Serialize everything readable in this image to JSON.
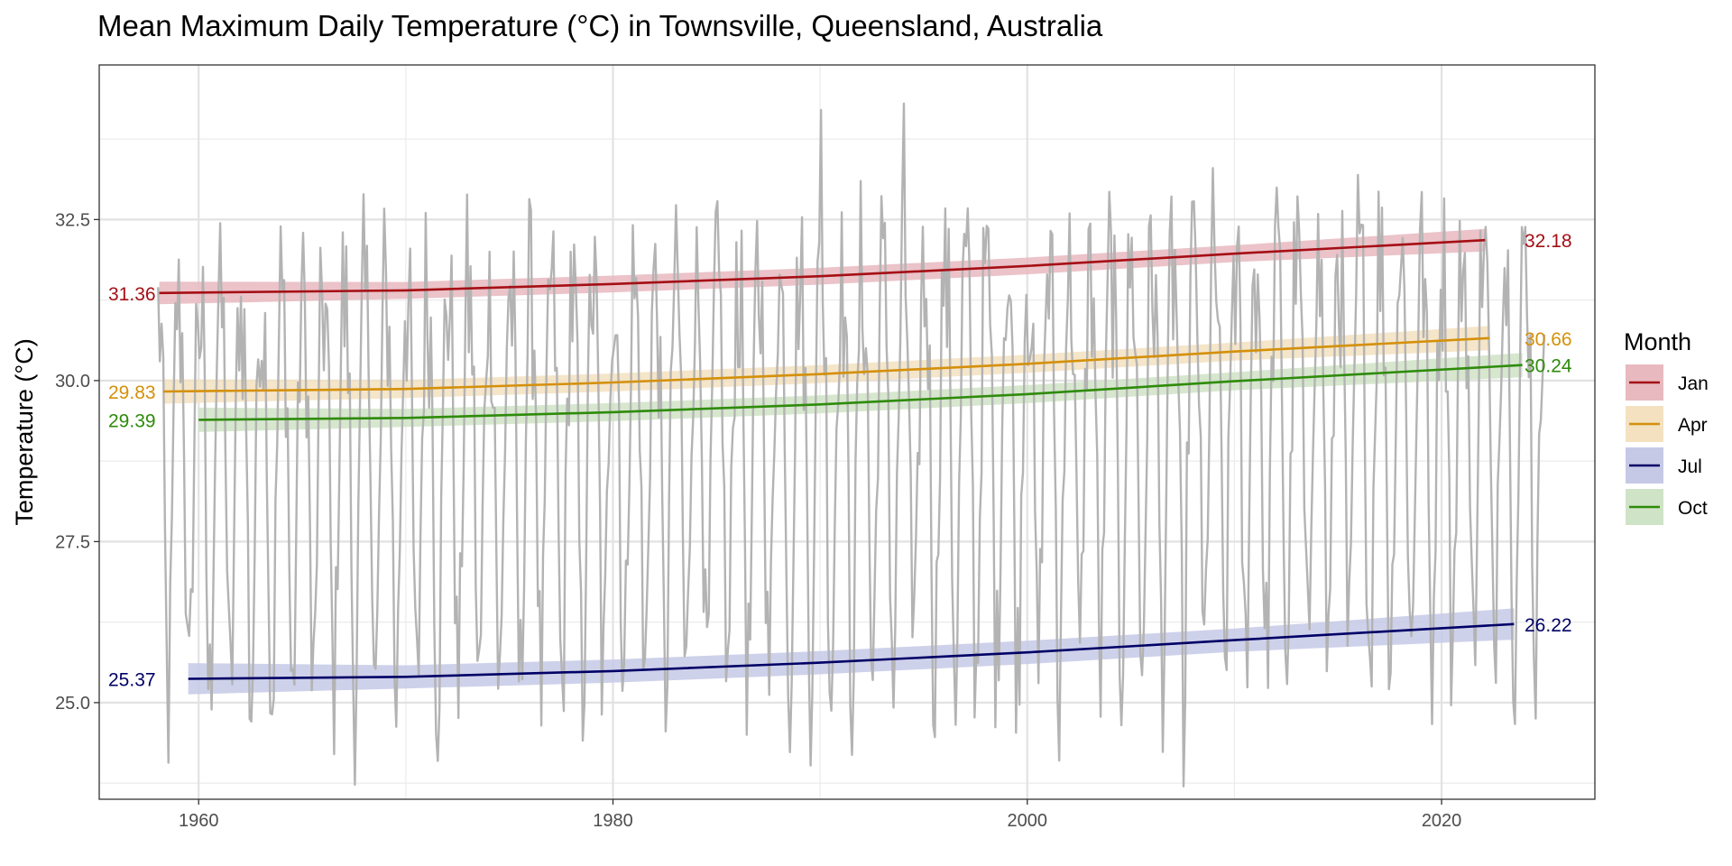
{
  "title": "Mean Maximum Daily Temperature (°C) in Townsville, Queensland, Australia",
  "chart_data": {
    "type": "line",
    "title": "Mean Maximum Daily Temperature (°C) in Townsville, Queensland, Australia",
    "xlabel": "",
    "ylabel": "Temperature (°C)",
    "xlim": [
      1955.2,
      2027.4
    ],
    "ylim": [
      23.5,
      34.9
    ],
    "x_ticks": [
      1960,
      1980,
      2000,
      2020
    ],
    "x_tick_labels": [
      "1960",
      "1980",
      "2000",
      "2020"
    ],
    "y_ticks": [
      25.0,
      27.5,
      30.0,
      32.5
    ],
    "y_tick_labels": [
      "25.0",
      "27.5",
      "30.0",
      "32.5"
    ],
    "grid": true,
    "legend": {
      "title": "Month",
      "placement": "right"
    },
    "monthly_series": {
      "name": "",
      "color": "#b3b3b3",
      "months_of_year": [
        1,
        2,
        3,
        4,
        5,
        6,
        7,
        8,
        9,
        10,
        11,
        12
      ],
      "year_start": 1958,
      "year_end": 2024,
      "annual_pattern": [
        31.4,
        31.3,
        30.9,
        29.8,
        27.6,
        25.8,
        25.4,
        26.2,
        27.9,
        29.4,
        30.9,
        31.7
      ],
      "annual_pattern_trend_per_decade": 0.13,
      "notable_extremes": [
        {
          "date": "1990-01",
          "value": 34.2
        },
        {
          "date": "1994-01",
          "value": 34.3
        },
        {
          "date": "2007-07",
          "value": 23.7
        },
        {
          "date": "1966-07",
          "value": 24.2
        },
        {
          "date": "2001-07",
          "value": 24.1
        }
      ]
    },
    "series": [
      {
        "name": "Jan",
        "color": "#a50f15",
        "band_color": "#e8b9bf",
        "x": [
          1958.1,
          1970,
          1980,
          1990,
          2000,
          2010,
          2022.1
        ],
        "values": [
          31.36,
          31.4,
          31.5,
          31.62,
          31.78,
          31.97,
          32.18
        ],
        "band_halfwidth": 0.13,
        "start_label": "31.36",
        "end_label": "32.18"
      },
      {
        "name": "Apr",
        "color": "#d4900a",
        "band_color": "#f3e1c0",
        "x": [
          1958.3,
          1970,
          1980,
          1990,
          2000,
          2010,
          2022.3
        ],
        "values": [
          29.83,
          29.87,
          29.97,
          30.1,
          30.26,
          30.45,
          30.66
        ],
        "band_halfwidth": 0.14,
        "start_label": "29.83",
        "end_label": "30.66"
      },
      {
        "name": "Jul",
        "color": "#000066",
        "band_color": "#c6c9e6",
        "x": [
          1959.5,
          1970,
          1980,
          1990,
          2000,
          2010,
          2023.5
        ],
        "values": [
          25.37,
          25.4,
          25.49,
          25.62,
          25.78,
          25.97,
          26.22
        ],
        "band_halfwidth": 0.18,
        "start_label": "25.37",
        "end_label": "26.22"
      },
      {
        "name": "Oct",
        "color": "#2e8b0a",
        "band_color": "#cfe3c6",
        "x": [
          1960.0,
          1970,
          1980,
          1990,
          2000,
          2010,
          2023.9
        ],
        "values": [
          29.39,
          29.42,
          29.51,
          29.63,
          29.79,
          29.99,
          30.24
        ],
        "band_halfwidth": 0.14,
        "start_label": "29.39",
        "end_label": "30.24"
      }
    ]
  }
}
